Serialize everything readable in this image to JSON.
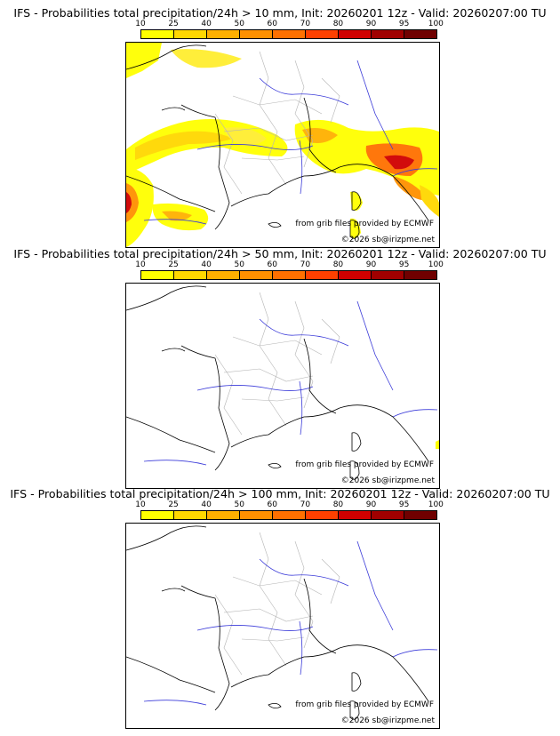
{
  "colors": {
    "scale": [
      "#ffff00",
      "#ffd700",
      "#ffb000",
      "#ff9000",
      "#ff7000",
      "#ff4000",
      "#d00000",
      "#a00000",
      "#700000"
    ],
    "border": "#000000",
    "rivers": "#3b3bd9",
    "regions": "#b4b4b4"
  },
  "scale_labels": [
    "10",
    "25",
    "40",
    "50",
    "60",
    "70",
    "80",
    "90",
    "95",
    "100"
  ],
  "panels": [
    {
      "title": "IFS - Probabilities total precipitation/24h > 10 mm, Init: 20260201 12z - Valid: 20260207:00 TU",
      "credit_source": "from grib files provided by ECMWF",
      "credit_site": "©2026 sb@irizpme.net"
    },
    {
      "title": "IFS - Probabilities total precipitation/24h > 50 mm, Init: 20260201 12z - Valid: 20260207:00 TU",
      "credit_source": "from grib files provided by ECMWF",
      "credit_site": "©2026 sb@irizpme.net"
    },
    {
      "title": "IFS - Probabilities total precipitation/24h > 100 mm, Init: 20260201 12z - Valid: 20260207:00 TU",
      "credit_source": "from grib files provided by ECMWF",
      "credit_site": "©2026 sb@irizpme.net"
    }
  ]
}
